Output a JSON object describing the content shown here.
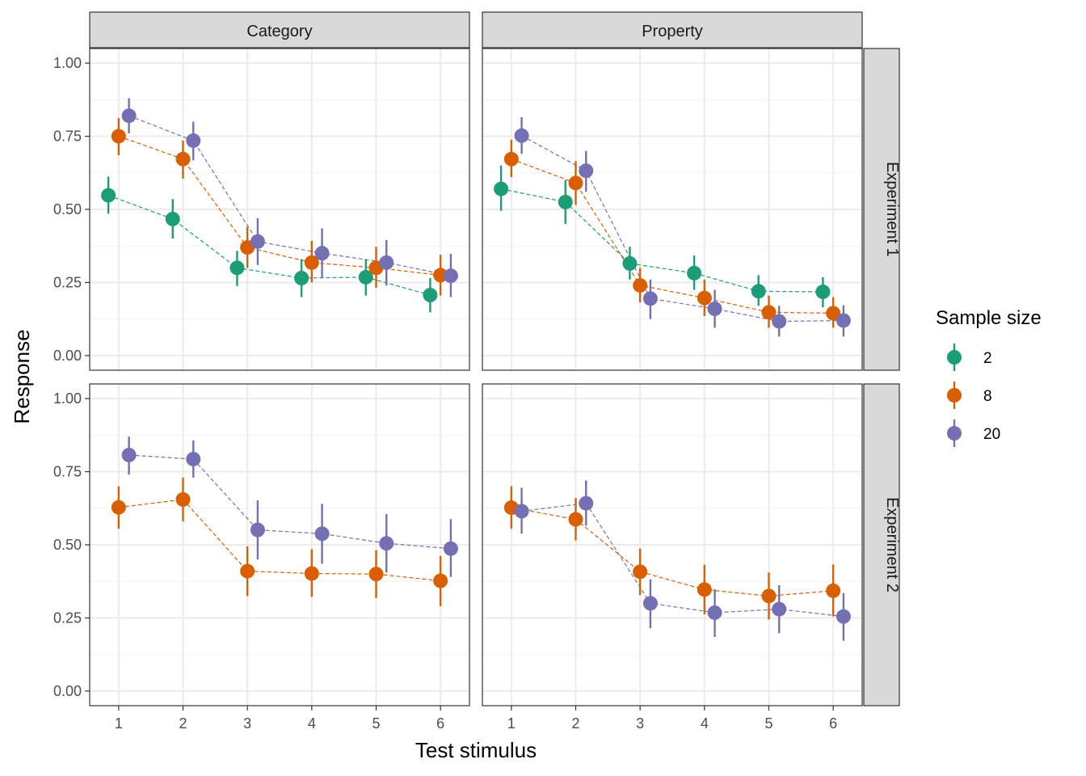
{
  "chart_data": {
    "type": "scatter",
    "xlabel": "Test stimulus",
    "ylabel": "Response",
    "x_ticks": [
      "1",
      "2",
      "3",
      "4",
      "5",
      "6"
    ],
    "y_ticks": [
      "0.00",
      "0.25",
      "0.50",
      "0.75",
      "1.00"
    ],
    "xlim": [
      0.55,
      6.45
    ],
    "ylim": [
      -0.05,
      1.05
    ],
    "grid": true,
    "legend": {
      "title": "Sample size",
      "position": "right",
      "entries": [
        {
          "label": "2",
          "color": "#1b9e77"
        },
        {
          "label": "8",
          "color": "#d95f02"
        },
        {
          "label": "20",
          "color": "#7570b3"
        }
      ]
    },
    "columns": [
      "Category",
      "Property"
    ],
    "rows": [
      "Experiment 1",
      "Experiment 2"
    ],
    "panels": [
      {
        "column": "Category",
        "row": "Experiment 1",
        "series": [
          {
            "name": "2",
            "x": [
              1,
              2,
              3,
              4,
              5,
              6
            ],
            "y": [
              0.548,
              0.467,
              0.3,
              0.265,
              0.268,
              0.207
            ],
            "lower": [
              0.485,
              0.4,
              0.238,
              0.2,
              0.205,
              0.148
            ],
            "upper": [
              0.612,
              0.535,
              0.358,
              0.33,
              0.33,
              0.265
            ]
          },
          {
            "name": "8",
            "x": [
              1,
              2,
              3,
              4,
              5,
              6
            ],
            "y": [
              0.75,
              0.672,
              0.37,
              0.318,
              0.3,
              0.275
            ],
            "lower": [
              0.685,
              0.605,
              0.3,
              0.25,
              0.232,
              0.205
            ],
            "upper": [
              0.812,
              0.735,
              0.44,
              0.392,
              0.372,
              0.345
            ]
          },
          {
            "name": "20",
            "x": [
              1,
              2,
              3,
              4,
              5,
              6
            ],
            "y": [
              0.82,
              0.735,
              0.39,
              0.35,
              0.318,
              0.273
            ],
            "lower": [
              0.76,
              0.668,
              0.31,
              0.265,
              0.24,
              0.2
            ],
            "upper": [
              0.88,
              0.8,
              0.47,
              0.435,
              0.395,
              0.348
            ]
          }
        ]
      },
      {
        "column": "Property",
        "row": "Experiment 1",
        "series": [
          {
            "name": "2",
            "x": [
              1,
              2,
              3,
              4,
              5,
              6
            ],
            "y": [
              0.57,
              0.525,
              0.315,
              0.282,
              0.22,
              0.218
            ],
            "lower": [
              0.495,
              0.45,
              0.26,
              0.225,
              0.17,
              0.165
            ],
            "upper": [
              0.65,
              0.6,
              0.372,
              0.342,
              0.275,
              0.268
            ]
          },
          {
            "name": "8",
            "x": [
              1,
              2,
              3,
              4,
              5,
              6
            ],
            "y": [
              0.672,
              0.59,
              0.24,
              0.197,
              0.148,
              0.145
            ],
            "lower": [
              0.61,
              0.515,
              0.182,
              0.135,
              0.095,
              0.095
            ],
            "upper": [
              0.738,
              0.665,
              0.3,
              0.26,
              0.205,
              0.2
            ]
          },
          {
            "name": "20",
            "x": [
              1,
              2,
              3,
              4,
              5,
              6
            ],
            "y": [
              0.752,
              0.632,
              0.195,
              0.16,
              0.117,
              0.12
            ],
            "lower": [
              0.69,
              0.56,
              0.125,
              0.095,
              0.065,
              0.065
            ],
            "upper": [
              0.815,
              0.7,
              0.26,
              0.225,
              0.17,
              0.172
            ]
          }
        ]
      },
      {
        "column": "Category",
        "row": "Experiment 2",
        "series": [
          {
            "name": "8",
            "x": [
              1,
              2,
              3,
              4,
              5,
              6
            ],
            "y": [
              0.628,
              0.655,
              0.41,
              0.402,
              0.4,
              0.377
            ],
            "lower": [
              0.555,
              0.58,
              0.325,
              0.322,
              0.318,
              0.29
            ],
            "upper": [
              0.7,
              0.73,
              0.495,
              0.485,
              0.482,
              0.462
            ]
          },
          {
            "name": "20",
            "x": [
              1,
              2,
              3,
              4,
              5,
              6
            ],
            "y": [
              0.807,
              0.793,
              0.551,
              0.538,
              0.505,
              0.487
            ],
            "lower": [
              0.74,
              0.73,
              0.45,
              0.435,
              0.405,
              0.39
            ],
            "upper": [
              0.87,
              0.857,
              0.652,
              0.64,
              0.605,
              0.588
            ]
          }
        ]
      },
      {
        "column": "Property",
        "row": "Experiment 2",
        "series": [
          {
            "name": "8",
            "x": [
              1,
              2,
              3,
              4,
              5,
              6
            ],
            "y": [
              0.627,
              0.587,
              0.408,
              0.347,
              0.325,
              0.343
            ],
            "lower": [
              0.555,
              0.515,
              0.328,
              0.262,
              0.245,
              0.255
            ],
            "upper": [
              0.7,
              0.66,
              0.487,
              0.432,
              0.405,
              0.433
            ]
          },
          {
            "name": "20",
            "x": [
              1,
              2,
              3,
              4,
              5,
              6
            ],
            "y": [
              0.615,
              0.642,
              0.3,
              0.268,
              0.28,
              0.255
            ],
            "lower": [
              0.538,
              0.565,
              0.215,
              0.185,
              0.198,
              0.172
            ],
            "upper": [
              0.695,
              0.72,
              0.382,
              0.348,
              0.362,
              0.335
            ]
          }
        ]
      }
    ]
  }
}
